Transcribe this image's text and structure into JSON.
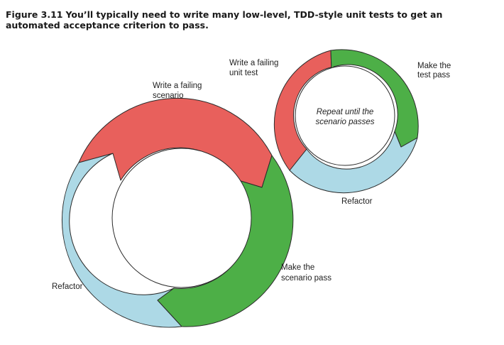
{
  "figure": {
    "number": "Figure 3.11",
    "caption": "You’ll typically need to write many low-level, TDD-style unit tests to get an automated acceptance criterion to pass."
  },
  "colors": {
    "red": "#e8605c",
    "green": "#4daf47",
    "blue": "#add9e6",
    "outline": "#2a2a2a"
  },
  "large_cycle": {
    "write_line1": "Write a failing",
    "write_line2": "scenario",
    "make_line1": "Make the",
    "make_line2": "scenario pass",
    "refactor": "Refactor"
  },
  "small_cycle": {
    "write_line1": "Write a failing",
    "write_line2": "unit test",
    "make_line1": "Make the",
    "make_line2": "test pass",
    "refactor": "Refactor",
    "center_line1": "Repeat until the",
    "center_line2": "scenario passes"
  }
}
